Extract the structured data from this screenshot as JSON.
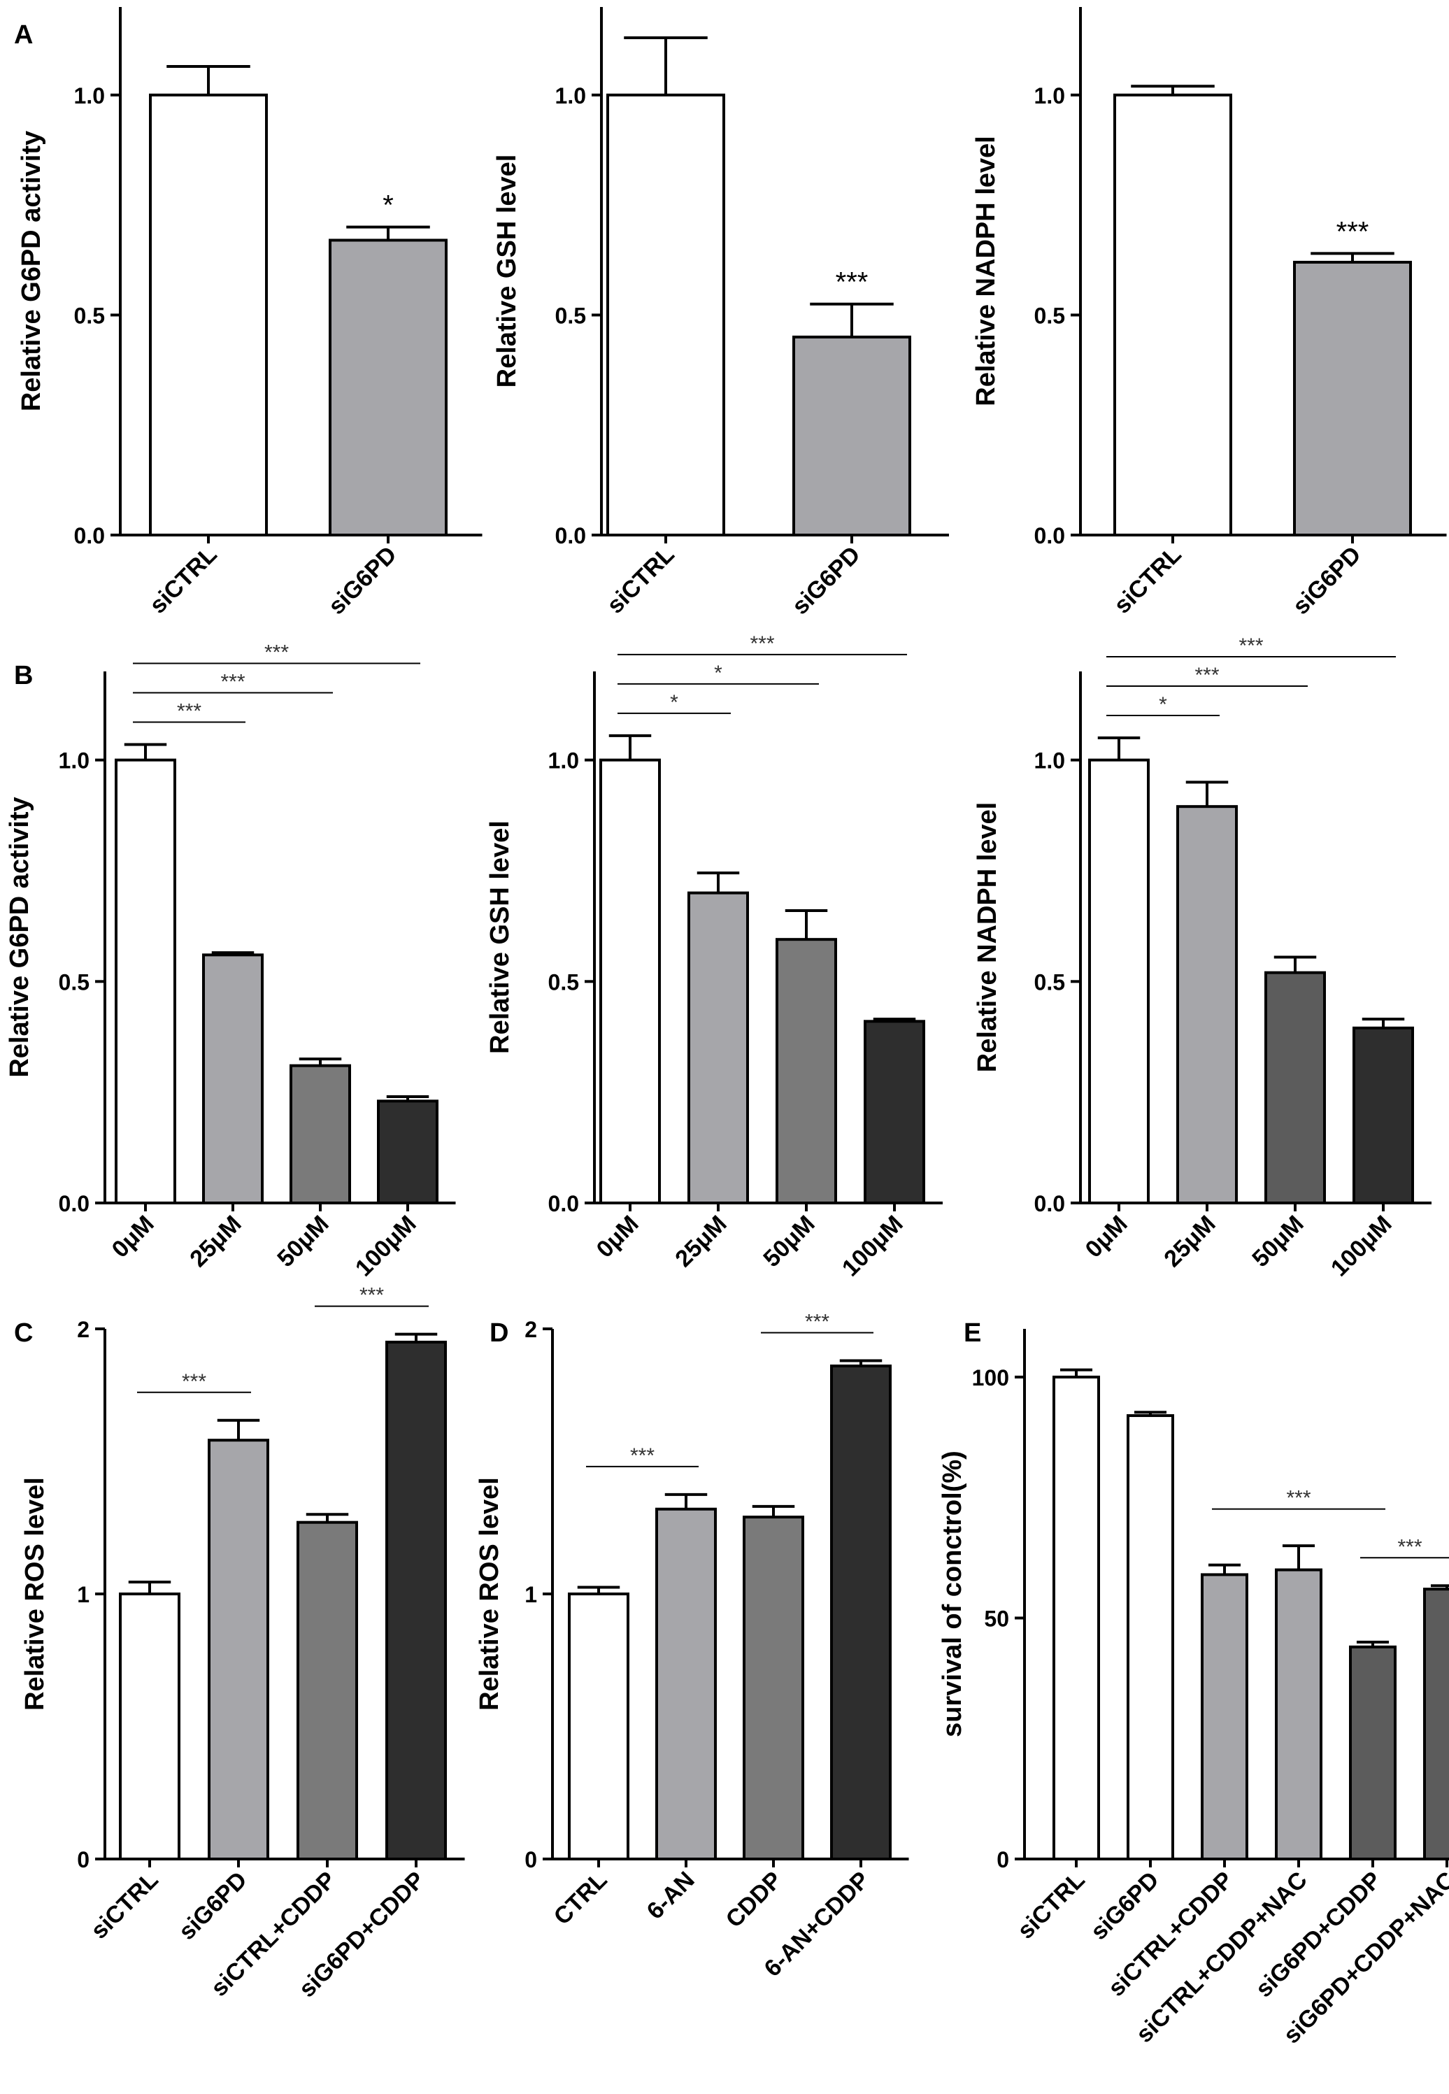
{
  "figure": {
    "panel_labels": [
      "A",
      "B",
      "C",
      "D",
      "E"
    ]
  },
  "style": {
    "bar_colors": {
      "white": "#ffffff",
      "light_gray": "#a6a6aa",
      "mid_gray": "#7a7a7a",
      "dark_gray": "#5c5c5c",
      "near_black": "#2e2e2e"
    },
    "stroke": "#000000"
  },
  "chart_data": [
    {
      "id": "A1",
      "panel": "A",
      "type": "bar",
      "title": "",
      "xlabel": "",
      "ylabel": "Relative G6PD activity",
      "ylim": [
        0,
        1.2
      ],
      "yticks": [
        "0.0",
        "0.5",
        "1.0"
      ],
      "ytick_values": [
        0,
        0.5,
        1.0
      ],
      "categories": [
        "siCTRL",
        "siG6PD"
      ],
      "values": [
        1.0,
        0.67
      ],
      "errors": [
        0.065,
        0.03
      ],
      "colors": [
        "#ffffff",
        "#a6a6aa"
      ],
      "annotations": [
        {
          "bar": 1,
          "text": "*"
        }
      ],
      "comparisons": []
    },
    {
      "id": "A2",
      "panel": "A",
      "type": "bar",
      "title": "",
      "xlabel": "",
      "ylabel": "Relative GSH level",
      "ylim": [
        0,
        1.2
      ],
      "yticks": [
        "0.0",
        "0.5",
        "1.0"
      ],
      "ytick_values": [
        0,
        0.5,
        1.0
      ],
      "categories": [
        "siCTRL",
        "siG6PD"
      ],
      "values": [
        1.0,
        0.45
      ],
      "errors": [
        0.13,
        0.075
      ],
      "colors": [
        "#ffffff",
        "#a6a6aa"
      ],
      "annotations": [
        {
          "bar": 1,
          "text": "***"
        }
      ],
      "comparisons": []
    },
    {
      "id": "A3",
      "panel": "A",
      "type": "bar",
      "title": "",
      "xlabel": "",
      "ylabel": "Relative NADPH level",
      "ylim": [
        0,
        1.2
      ],
      "yticks": [
        "0.0",
        "0.5",
        "1.0"
      ],
      "ytick_values": [
        0,
        0.5,
        1.0
      ],
      "categories": [
        "siCTRL",
        "siG6PD"
      ],
      "values": [
        1.0,
        0.62
      ],
      "errors": [
        0.02,
        0.02
      ],
      "colors": [
        "#ffffff",
        "#a6a6aa"
      ],
      "annotations": [
        {
          "bar": 1,
          "text": "***"
        }
      ],
      "comparisons": []
    },
    {
      "id": "B1",
      "panel": "B",
      "type": "bar",
      "title": "",
      "xlabel": "",
      "ylabel": "Relative G6PD activity",
      "ylim": [
        0,
        1.2
      ],
      "yticks": [
        "0.0",
        "0.5",
        "1.0"
      ],
      "ytick_values": [
        0,
        0.5,
        1.0
      ],
      "categories": [
        "0μM",
        "25μM",
        "50μM",
        "100μM"
      ],
      "values": [
        1.0,
        0.56,
        0.31,
        0.23
      ],
      "errors": [
        0.035,
        0.005,
        0.015,
        0.01
      ],
      "colors": [
        "#ffffff",
        "#a6a6aa",
        "#7a7a7a",
        "#2e2e2e"
      ],
      "annotations": [],
      "comparisons": [
        {
          "from": 0,
          "to": 1,
          "text": "***"
        },
        {
          "from": 0,
          "to": 2,
          "text": "***"
        },
        {
          "from": 0,
          "to": 3,
          "text": "***"
        }
      ]
    },
    {
      "id": "B2",
      "panel": "B",
      "type": "bar",
      "title": "",
      "xlabel": "",
      "ylabel": "Relative GSH level",
      "ylim": [
        0,
        1.2
      ],
      "yticks": [
        "0.0",
        "0.5",
        "1.0"
      ],
      "ytick_values": [
        0,
        0.5,
        1.0
      ],
      "categories": [
        "0μM",
        "25μM",
        "50μM",
        "100μM"
      ],
      "values": [
        1.0,
        0.7,
        0.595,
        0.41
      ],
      "errors": [
        0.055,
        0.045,
        0.065,
        0.005
      ],
      "colors": [
        "#ffffff",
        "#a6a6aa",
        "#7a7a7a",
        "#2e2e2e"
      ],
      "annotations": [],
      "comparisons": [
        {
          "from": 0,
          "to": 1,
          "text": "*"
        },
        {
          "from": 0,
          "to": 2,
          "text": "*"
        },
        {
          "from": 0,
          "to": 3,
          "text": "***"
        }
      ]
    },
    {
      "id": "B3",
      "panel": "B",
      "type": "bar",
      "title": "",
      "xlabel": "",
      "ylabel": "Relative NADPH level",
      "ylim": [
        0,
        1.2
      ],
      "yticks": [
        "0.0",
        "0.5",
        "1.0"
      ],
      "ytick_values": [
        0,
        0.5,
        1.0
      ],
      "categories": [
        "0μM",
        "25μM",
        "50μM",
        "100μM"
      ],
      "values": [
        1.0,
        0.895,
        0.52,
        0.395
      ],
      "errors": [
        0.05,
        0.055,
        0.035,
        0.02
      ],
      "colors": [
        "#ffffff",
        "#a6a6aa",
        "#5c5c5c",
        "#2e2e2e"
      ],
      "annotations": [],
      "comparisons": [
        {
          "from": 0,
          "to": 1,
          "text": "*"
        },
        {
          "from": 0,
          "to": 2,
          "text": "***"
        },
        {
          "from": 0,
          "to": 3,
          "text": "***"
        }
      ]
    },
    {
      "id": "C",
      "panel": "C",
      "type": "bar",
      "title": "",
      "xlabel": "",
      "ylabel": "Relative ROS level",
      "ylim": [
        0,
        2.0
      ],
      "yticks": [
        "0",
        "1",
        "2"
      ],
      "ytick_values": [
        0,
        1,
        2
      ],
      "categories": [
        "siCTRL",
        "siG6PD",
        "siCTRL+CDDP",
        "siG6PD+CDDP"
      ],
      "values": [
        1.0,
        1.58,
        1.27,
        1.95
      ],
      "errors": [
        0.045,
        0.075,
        0.03,
        0.03
      ],
      "colors": [
        "#ffffff",
        "#a6a6aa",
        "#7a7a7a",
        "#2e2e2e"
      ],
      "annotations": [],
      "comparisons": [
        {
          "from": 0,
          "to": 1,
          "text": "***"
        },
        {
          "from": 2,
          "to": 3,
          "text": "***"
        }
      ]
    },
    {
      "id": "D",
      "panel": "D",
      "type": "bar",
      "title": "",
      "xlabel": "",
      "ylabel": "Relative ROS level",
      "ylim": [
        0,
        2.0
      ],
      "yticks": [
        "0",
        "1",
        "2"
      ],
      "ytick_values": [
        0,
        1,
        2
      ],
      "categories": [
        "CTRL",
        "6-AN",
        "CDDP",
        "6-AN+CDDP"
      ],
      "values": [
        1.0,
        1.32,
        1.29,
        1.86
      ],
      "errors": [
        0.025,
        0.055,
        0.04,
        0.02
      ],
      "colors": [
        "#ffffff",
        "#a6a6aa",
        "#7a7a7a",
        "#2e2e2e"
      ],
      "annotations": [],
      "comparisons": [
        {
          "from": 0,
          "to": 1,
          "text": "***"
        },
        {
          "from": 2,
          "to": 3,
          "text": "***"
        }
      ]
    },
    {
      "id": "E",
      "panel": "E",
      "type": "bar",
      "title": "",
      "xlabel": "",
      "ylabel": "survival of conctrol(%)",
      "ylim": [
        0,
        110
      ],
      "yticks": [
        "0",
        "50",
        "100"
      ],
      "ytick_values": [
        0,
        50,
        100
      ],
      "categories": [
        "siCTRL",
        "siG6PD",
        "siCTRL+CDDP",
        "siCTRL+CDDP+NAC",
        "siG6PD+CDDP",
        "siG6PD+CDDP+NAC"
      ],
      "values": [
        100,
        92,
        59,
        60,
        44,
        56
      ],
      "errors": [
        1.5,
        0.7,
        2.0,
        5.0,
        1.0,
        0.7
      ],
      "colors": [
        "#ffffff",
        "#ffffff",
        "#a6a6aa",
        "#a6a6aa",
        "#5c5c5c",
        "#5c5c5c"
      ],
      "annotations": [],
      "comparisons": [
        {
          "from": 2,
          "to": 4,
          "text": "***"
        },
        {
          "from": 4,
          "to": 5,
          "text": "***"
        }
      ]
    }
  ]
}
